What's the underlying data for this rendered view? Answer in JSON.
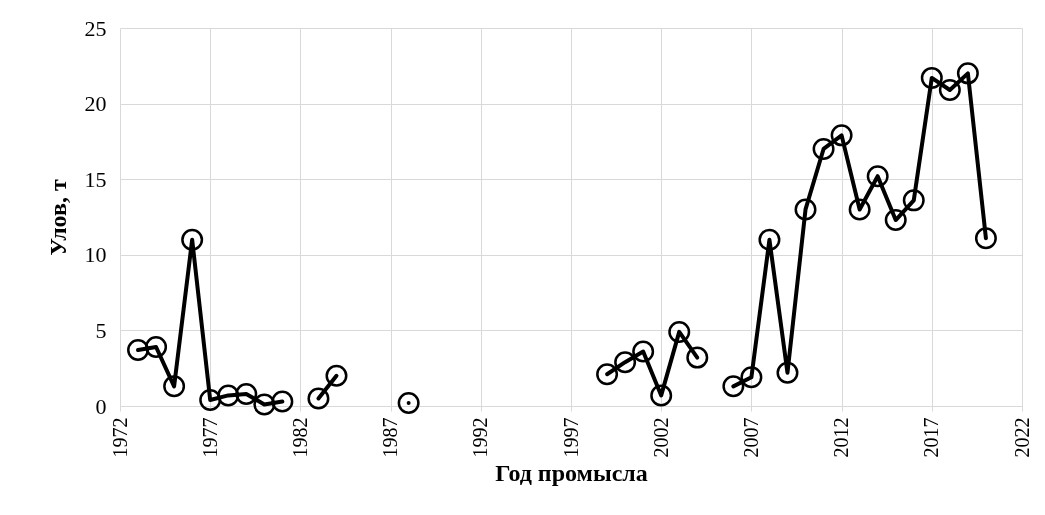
{
  "chart_data": {
    "type": "line",
    "xlabel": "Год промысла",
    "ylabel": "Улов, т",
    "x": [
      1973,
      1974,
      1975,
      1976,
      1977,
      1978,
      1979,
      1980,
      1981,
      1982,
      1983,
      1984,
      1985,
      1986,
      1987,
      1988,
      1989,
      1998,
      1999,
      2000,
      2001,
      2002,
      2003,
      2004,
      2005,
      2006,
      2007,
      2008,
      2009,
      2010,
      2011,
      2012,
      2013,
      2014,
      2015,
      2016,
      2017,
      2018,
      2019,
      2020
    ],
    "series": [
      {
        "color": "#000000",
        "values": [
          3.7,
          3.9,
          1.3,
          11.0,
          0.4,
          0.7,
          0.8,
          0.1,
          0.3,
          null,
          0.5,
          2.0,
          null,
          null,
          null,
          0.2,
          null,
          null,
          2.1,
          2.9,
          3.6,
          0.7,
          4.9,
          3.2,
          null,
          1.3,
          1.9,
          11.0,
          2.2,
          13.0,
          17.0,
          17.9,
          13.0,
          15.2,
          12.3,
          13.6,
          21.7,
          20.9,
          22.0,
          11.1
        ]
      }
    ],
    "xlim": [
      1972,
      2022
    ],
    "xticks": [
      1972,
      1977,
      1982,
      1987,
      1992,
      1997,
      2002,
      2007,
      2012,
      2017,
      2022
    ],
    "ylim": [
      0,
      25
    ],
    "yticks": [
      0,
      5,
      10,
      15,
      20,
      25
    ],
    "grid": true,
    "marker": "circle",
    "line_style": "solid"
  }
}
